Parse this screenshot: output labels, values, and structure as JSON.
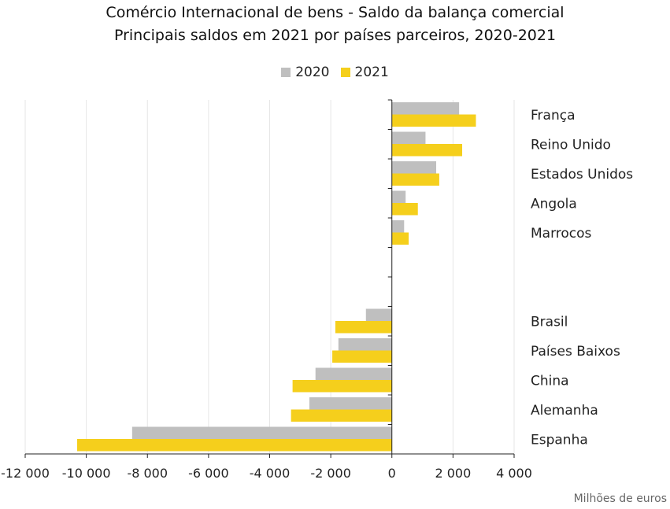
{
  "chart_data": {
    "type": "bar",
    "orientation": "horizontal",
    "title": "Comércio Internacional de bens - Saldo da balança comercial",
    "subtitle": "Principais saldos em 2021 por países parceiros, 2020-2021",
    "unit_label": "Milhões de euros",
    "categories": [
      "França",
      "Reino Unido",
      "Estados Unidos",
      "Angola",
      "Marrocos",
      "",
      "",
      "Brasil",
      "Países Baixos",
      "China",
      "Alemanha",
      "Espanha"
    ],
    "series": [
      {
        "name": "2020",
        "color": "#bfbfbf",
        "values": [
          2200,
          1100,
          1450,
          450,
          400,
          null,
          null,
          -850,
          -1750,
          -2500,
          -2700,
          -8500
        ]
      },
      {
        "name": "2021",
        "color": "#f5cf1c",
        "values": [
          2750,
          2300,
          1550,
          850,
          550,
          null,
          null,
          -1850,
          -1950,
          -3250,
          -3300,
          -10300
        ]
      }
    ],
    "xlim": [
      -12000,
      4000
    ],
    "x_ticks": [
      -12000,
      -10000,
      -8000,
      -6000,
      -4000,
      -2000,
      0,
      2000,
      4000
    ],
    "x_tick_labels": [
      "-12 000",
      "-10 000",
      "-8 000",
      "-6 000",
      "-4 000",
      "-2 000",
      "0",
      "2 000",
      "4 000"
    ],
    "grid": true,
    "legend_position": "top-center"
  }
}
